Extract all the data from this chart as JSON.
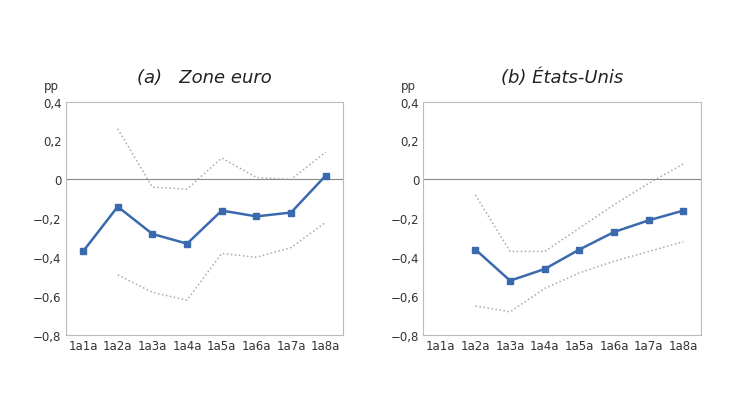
{
  "panel_a": {
    "title": "(a)   Zone euro",
    "x_labels": [
      "1a1a",
      "1a2a",
      "1a3a",
      "1a4a",
      "1a5a",
      "1a6a",
      "1a7a",
      "1a8a"
    ],
    "main_line": [
      -0.37,
      -0.14,
      -0.28,
      -0.33,
      -0.16,
      -0.19,
      -0.17,
      0.02
    ],
    "upper_band": [
      null,
      0.26,
      -0.04,
      -0.05,
      0.11,
      0.01,
      0.0,
      0.14
    ],
    "lower_band": [
      null,
      -0.49,
      -0.58,
      -0.62,
      -0.38,
      -0.4,
      -0.35,
      -0.22
    ],
    "ylim": [
      -0.8,
      0.4
    ],
    "yticks": [
      -0.8,
      -0.6,
      -0.4,
      -0.2,
      0.0,
      0.2,
      0.4
    ],
    "ylabel": "pp"
  },
  "panel_b": {
    "title": "(b) États-Unis",
    "x_labels": [
      "1a1a",
      "1a2a",
      "1a3a",
      "1a4a",
      "1a5a",
      "1a6a",
      "1a7a",
      "1a8a"
    ],
    "main_line": [
      null,
      -0.36,
      -0.52,
      -0.46,
      -0.36,
      -0.27,
      -0.21,
      -0.16
    ],
    "upper_band": [
      null,
      -0.08,
      -0.37,
      -0.37,
      -0.25,
      -0.13,
      -0.02,
      0.08
    ],
    "lower_band": [
      null,
      -0.65,
      -0.68,
      -0.56,
      -0.48,
      -0.42,
      -0.37,
      -0.32
    ],
    "ylim": [
      -0.8,
      0.4
    ],
    "yticks": [
      -0.8,
      -0.6,
      -0.4,
      -0.2,
      0.0,
      0.2,
      0.4
    ],
    "ylabel": "pp"
  },
  "line_color": "#3A6AAD",
  "band_color": "#AAAAAA",
  "background_color": "#ffffff",
  "title_fontsize": 13,
  "label_fontsize": 8.5,
  "tick_fontsize": 8.5
}
